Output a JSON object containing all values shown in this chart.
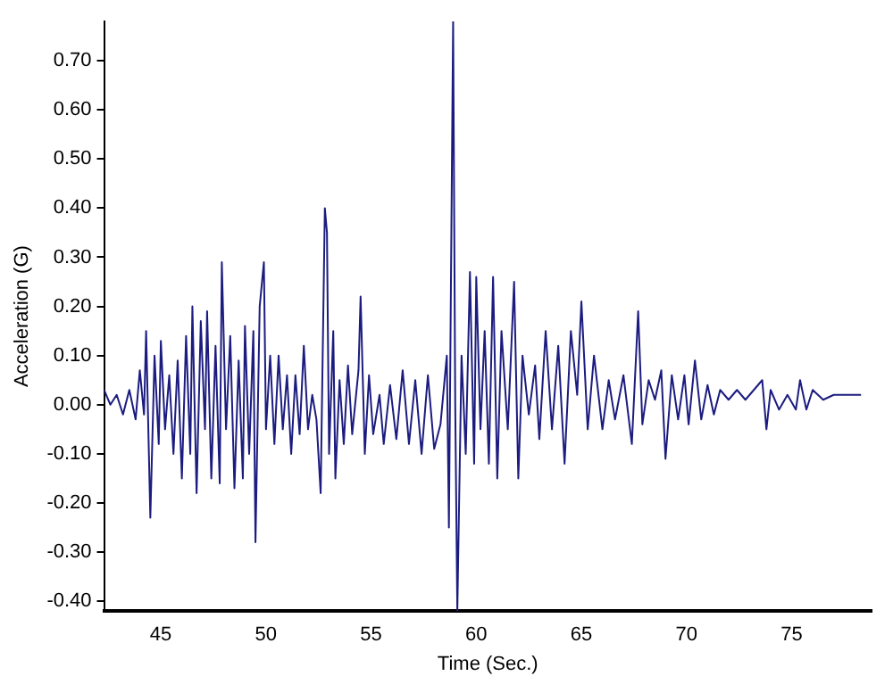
{
  "chart_data": {
    "type": "line",
    "xlabel": "Time (Sec.)",
    "ylabel": "Acceleration (G)",
    "xlim": [
      42.3,
      78.8
    ],
    "xticks": [
      45,
      50,
      55,
      60,
      65,
      70,
      75
    ],
    "ylim": [
      -0.42,
      0.78
    ],
    "yticks": [
      {
        "value": -0.4,
        "label": "-0.40"
      },
      {
        "value": -0.3,
        "label": "-0.30"
      },
      {
        "value": -0.2,
        "label": "-0.20"
      },
      {
        "value": -0.1,
        "label": "-0.10"
      },
      {
        "value": 0,
        "label": "0.00"
      },
      {
        "value": 0.1,
        "label": "0.10"
      },
      {
        "value": 0.2,
        "label": "0.20"
      },
      {
        "value": 0.3,
        "label": "0.30"
      },
      {
        "value": 0.4,
        "label": "0.40"
      },
      {
        "value": 0.5,
        "label": "0.50"
      },
      {
        "value": 0.6,
        "label": "0.60"
      },
      {
        "value": 0.7,
        "label": "0.70"
      }
    ],
    "grid": false,
    "legend": false,
    "marker": "none",
    "line_style": "solid",
    "series": [
      {
        "color": "#1c1c80",
        "x": [
          42.3,
          42.6,
          42.9,
          43.2,
          43.5,
          43.8,
          44.0,
          44.2,
          44.3,
          44.5,
          44.7,
          44.9,
          45.0,
          45.2,
          45.4,
          45.6,
          45.8,
          46.0,
          46.2,
          46.4,
          46.5,
          46.7,
          46.9,
          47.1,
          47.2,
          47.4,
          47.6,
          47.8,
          47.9,
          48.1,
          48.3,
          48.5,
          48.7,
          48.9,
          49.0,
          49.2,
          49.4,
          49.5,
          49.7,
          49.9,
          50.0,
          50.2,
          50.4,
          50.6,
          50.8,
          51.0,
          51.2,
          51.4,
          51.6,
          51.8,
          52.0,
          52.2,
          52.4,
          52.6,
          52.8,
          52.9,
          53.0,
          53.2,
          53.3,
          53.5,
          53.7,
          53.9,
          54.1,
          54.4,
          54.5,
          54.7,
          54.9,
          55.1,
          55.4,
          55.6,
          55.9,
          56.2,
          56.5,
          56.8,
          57.1,
          57.4,
          57.7,
          58.0,
          58.3,
          58.6,
          58.7,
          58.9,
          59.0,
          59.1,
          59.3,
          59.5,
          59.7,
          59.9,
          60.0,
          60.2,
          60.4,
          60.6,
          60.8,
          61.0,
          61.2,
          61.5,
          61.8,
          62.0,
          62.2,
          62.5,
          62.8,
          63.0,
          63.3,
          63.6,
          63.9,
          64.2,
          64.5,
          64.8,
          65.0,
          65.3,
          65.6,
          66.0,
          66.3,
          66.6,
          67.0,
          67.4,
          67.7,
          67.9,
          68.2,
          68.5,
          68.8,
          69.0,
          69.3,
          69.6,
          69.9,
          70.1,
          70.4,
          70.7,
          71.0,
          71.3,
          71.6,
          72.0,
          72.4,
          72.8,
          73.2,
          73.6,
          73.8,
          74.0,
          74.4,
          74.8,
          75.2,
          75.4,
          75.7,
          76.0,
          76.5,
          77.0,
          77.5,
          78.3
        ],
        "values": [
          0.03,
          0.0,
          0.02,
          -0.02,
          0.03,
          -0.03,
          0.07,
          -0.02,
          0.15,
          -0.23,
          0.1,
          -0.08,
          0.13,
          -0.05,
          0.06,
          -0.1,
          0.09,
          -0.15,
          0.14,
          -0.1,
          0.2,
          -0.18,
          0.17,
          -0.05,
          0.19,
          -0.15,
          0.12,
          -0.16,
          0.29,
          -0.05,
          0.14,
          -0.17,
          0.09,
          -0.15,
          0.16,
          -0.1,
          0.15,
          -0.28,
          0.2,
          0.29,
          -0.05,
          0.1,
          -0.08,
          0.1,
          -0.05,
          0.06,
          -0.1,
          0.06,
          -0.06,
          0.12,
          -0.05,
          0.02,
          -0.03,
          -0.18,
          0.4,
          0.35,
          -0.1,
          0.15,
          -0.15,
          0.05,
          -0.08,
          0.08,
          -0.06,
          0.07,
          0.22,
          -0.1,
          0.06,
          -0.06,
          0.02,
          -0.08,
          0.04,
          -0.07,
          0.07,
          -0.08,
          0.05,
          -0.1,
          0.06,
          -0.09,
          -0.04,
          0.1,
          -0.25,
          0.78,
          0.0,
          -0.42,
          0.1,
          -0.1,
          0.27,
          -0.12,
          0.26,
          -0.05,
          0.15,
          -0.12,
          0.26,
          -0.15,
          0.15,
          -0.05,
          0.25,
          -0.15,
          0.1,
          -0.02,
          0.08,
          -0.07,
          0.15,
          -0.05,
          0.12,
          -0.12,
          0.15,
          0.02,
          0.21,
          -0.05,
          0.1,
          -0.05,
          0.05,
          -0.03,
          0.06,
          -0.08,
          0.19,
          -0.04,
          0.05,
          0.01,
          0.07,
          -0.11,
          0.06,
          -0.03,
          0.06,
          -0.04,
          0.09,
          -0.03,
          0.04,
          -0.02,
          0.03,
          0.01,
          0.03,
          0.01,
          0.03,
          0.05,
          -0.05,
          0.03,
          -0.01,
          0.02,
          -0.01,
          0.05,
          -0.01,
          0.03,
          0.01,
          0.02,
          0.02,
          0.02
        ]
      }
    ]
  }
}
